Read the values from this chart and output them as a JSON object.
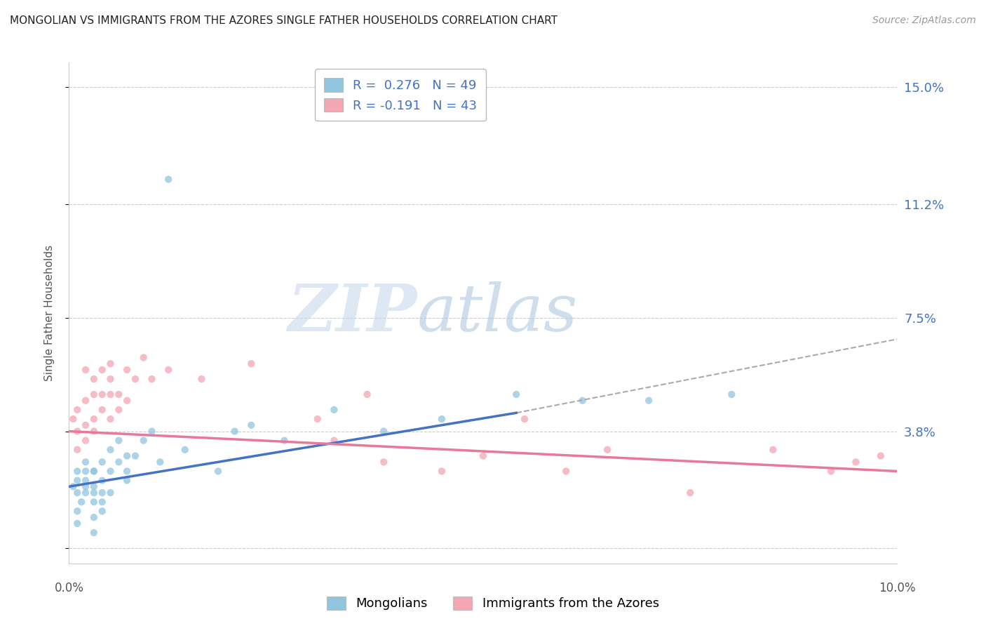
{
  "title": "MONGOLIAN VS IMMIGRANTS FROM THE AZORES SINGLE FATHER HOUSEHOLDS CORRELATION CHART",
  "source": "Source: ZipAtlas.com",
  "ylabel": "Single Father Households",
  "yticks": [
    0.0,
    0.038,
    0.075,
    0.112,
    0.15
  ],
  "ytick_labels": [
    "",
    "3.8%",
    "7.5%",
    "11.2%",
    "15.0%"
  ],
  "xlim": [
    0.0,
    0.1
  ],
  "ylim": [
    -0.005,
    0.158
  ],
  "watermark_zip": "ZIP",
  "watermark_atlas": "atlas",
  "legend_r1": "R =  0.276",
  "legend_n1": "N = 49",
  "legend_r2": "R = -0.191",
  "legend_n2": "N = 43",
  "color_mongolian": "#92C5DE",
  "color_azores": "#F4A6B2",
  "color_text_blue": "#4472C4",
  "line_color_mongolian": "#4472C4",
  "line_color_azores_trend": "#E8799A",
  "mongolian_x": [
    0.0005,
    0.001,
    0.001,
    0.001,
    0.001,
    0.001,
    0.0015,
    0.002,
    0.002,
    0.002,
    0.002,
    0.002,
    0.003,
    0.003,
    0.003,
    0.003,
    0.003,
    0.003,
    0.003,
    0.004,
    0.004,
    0.004,
    0.004,
    0.004,
    0.005,
    0.005,
    0.005,
    0.006,
    0.006,
    0.007,
    0.007,
    0.007,
    0.008,
    0.009,
    0.01,
    0.011,
    0.012,
    0.014,
    0.018,
    0.02,
    0.022,
    0.026,
    0.032,
    0.038,
    0.045,
    0.054,
    0.062,
    0.07,
    0.08
  ],
  "mongolian_y": [
    0.02,
    0.018,
    0.022,
    0.025,
    0.012,
    0.008,
    0.015,
    0.02,
    0.025,
    0.018,
    0.028,
    0.022,
    0.015,
    0.02,
    0.025,
    0.018,
    0.01,
    0.005,
    0.025,
    0.018,
    0.022,
    0.028,
    0.012,
    0.015,
    0.025,
    0.032,
    0.018,
    0.035,
    0.028,
    0.03,
    0.025,
    0.022,
    0.03,
    0.035,
    0.038,
    0.028,
    0.12,
    0.032,
    0.025,
    0.038,
    0.04,
    0.035,
    0.045,
    0.038,
    0.042,
    0.05,
    0.048,
    0.048,
    0.05
  ],
  "azores_x": [
    0.0005,
    0.001,
    0.001,
    0.001,
    0.002,
    0.002,
    0.002,
    0.002,
    0.003,
    0.003,
    0.003,
    0.003,
    0.004,
    0.004,
    0.004,
    0.005,
    0.005,
    0.005,
    0.005,
    0.006,
    0.006,
    0.007,
    0.007,
    0.008,
    0.009,
    0.01,
    0.012,
    0.016,
    0.022,
    0.03,
    0.032,
    0.036,
    0.038,
    0.045,
    0.05,
    0.055,
    0.06,
    0.065,
    0.075,
    0.085,
    0.092,
    0.095,
    0.098
  ],
  "azores_y": [
    0.042,
    0.038,
    0.045,
    0.032,
    0.048,
    0.04,
    0.058,
    0.035,
    0.05,
    0.042,
    0.055,
    0.038,
    0.05,
    0.058,
    0.045,
    0.06,
    0.05,
    0.042,
    0.055,
    0.05,
    0.045,
    0.058,
    0.048,
    0.055,
    0.062,
    0.055,
    0.058,
    0.055,
    0.06,
    0.042,
    0.035,
    0.05,
    0.028,
    0.025,
    0.03,
    0.042,
    0.025,
    0.032,
    0.018,
    0.032,
    0.025,
    0.028,
    0.03
  ],
  "blue_line_x_start": 0.0,
  "blue_line_y_start": 0.02,
  "blue_line_x_solid_end": 0.054,
  "blue_line_y_solid_end": 0.044,
  "blue_line_x_dash_end": 0.1,
  "blue_line_y_dash_end": 0.068,
  "pink_line_x_start": 0.0,
  "pink_line_y_start": 0.038,
  "pink_line_x_end": 0.1,
  "pink_line_y_end": 0.025
}
